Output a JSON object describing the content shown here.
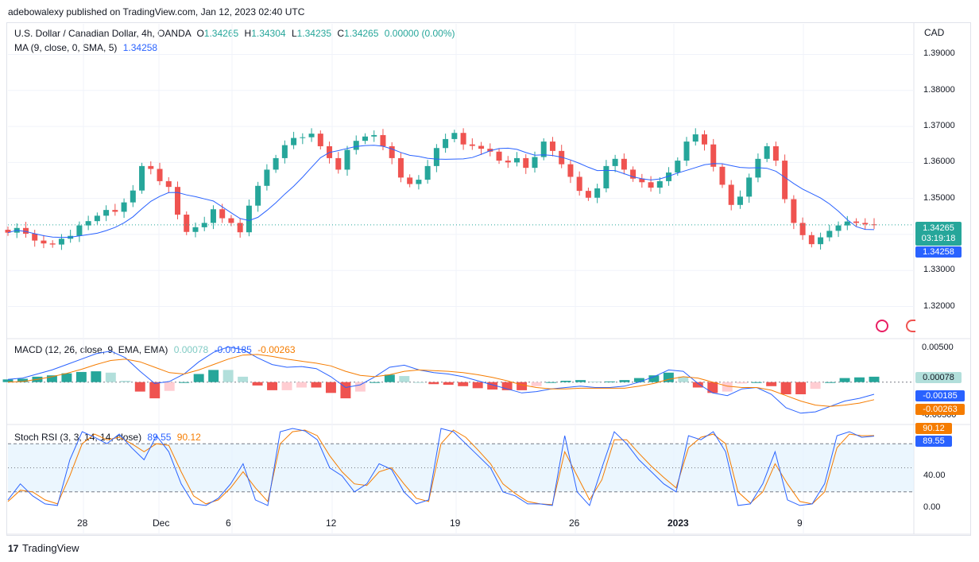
{
  "publisher": "adebowalexy published on TradingView.com, Jan 12, 2023 02:40 UTC",
  "brand": "TradingView",
  "symbol": {
    "title": "U.S. Dollar / Canadian Dollar, 4h, OANDA",
    "o_label": "O",
    "o": "1.34265",
    "h_label": "H",
    "h": "1.34304",
    "l_label": "L",
    "l": "1.34235",
    "c_label": "C",
    "c": "1.34265",
    "change": "0.00000 (0.00%)"
  },
  "ma": {
    "label": "MA (9, close, 0, SMA, 5)",
    "value": "1.34258"
  },
  "macd": {
    "label": "MACD (12, 26, close, 9, EMA, EMA)",
    "hist": "0.00078",
    "macd": "-0.00185",
    "signal": "-0.00263"
  },
  "stoch": {
    "label": "Stoch RSI (3, 3, 14, 14, close)",
    "k": "89.55",
    "d": "90.12"
  },
  "price_scale": {
    "currency": "CAD",
    "ticks": [
      "1.39000",
      "1.38000",
      "1.37000",
      "1.36000",
      "1.35000",
      "1.34000",
      "1.33000",
      "1.32000"
    ]
  },
  "price_labels": {
    "last": "1.34265",
    "countdown": "03:19:18",
    "ma": "1.34258"
  },
  "macd_scale": {
    "ticks": [
      "0.00500",
      "-0.00500"
    ]
  },
  "stoch_scale": {
    "ticks": [
      "80.00",
      "40.00",
      "0.00"
    ]
  },
  "time_axis": [
    "28",
    "Dec",
    "6",
    "12",
    "19",
    "26",
    "2023",
    "9"
  ],
  "colors": {
    "up": "#26a69a",
    "down": "#ef5350",
    "ma": "#2962ff",
    "signal": "#f57c00",
    "hist_up_light": "#b2dfdb",
    "hist_down_light": "#ffcdd2"
  },
  "chart_data": [
    {
      "type": "candlestick",
      "title": "U.S. Dollar / Canadian Dollar, 4h, OANDA",
      "ylim": [
        1.3115,
        1.3985
      ],
      "series_close_approx": [
        1.3405,
        1.3418,
        1.3402,
        1.3383,
        1.3375,
        1.3372,
        1.3388,
        1.3396,
        1.3425,
        1.3437,
        1.3452,
        1.3468,
        1.3463,
        1.3489,
        1.3522,
        1.359,
        1.3582,
        1.3548,
        1.3532,
        1.3455,
        1.3407,
        1.342,
        1.3432,
        1.347,
        1.3445,
        1.3432,
        1.3406,
        1.348,
        1.3535,
        1.358,
        1.3612,
        1.3648,
        1.3668,
        1.367,
        1.368,
        1.3645,
        1.3612,
        1.358,
        1.3635,
        1.366,
        1.3672,
        1.3676,
        1.3645,
        1.3612,
        1.3558,
        1.354,
        1.3552,
        1.359,
        1.364,
        1.3665,
        1.3682,
        1.365,
        1.3646,
        1.3638,
        1.363,
        1.3605,
        1.36,
        1.3612,
        1.3585,
        1.3615,
        1.3658,
        1.3632,
        1.3595,
        1.356,
        1.3521,
        1.3502,
        1.3528,
        1.359,
        1.361,
        1.358,
        1.3555,
        1.3545,
        1.353,
        1.3548,
        1.3572,
        1.3605,
        1.3658,
        1.3678,
        1.365,
        1.3588,
        1.3538,
        1.3482,
        1.3505,
        1.3558,
        1.361,
        1.3645,
        1.3605,
        1.3498,
        1.3432,
        1.3398,
        1.3373,
        1.3392,
        1.341,
        1.3425,
        1.3436,
        1.3432,
        1.3428,
        1.3426
      ],
      "ma_last": 1.34258,
      "last_price": 1.34265
    },
    {
      "type": "line",
      "title": "MACD (12, 26, close, 9, EMA, EMA)",
      "series": [
        {
          "name": "MACD",
          "values": [
            0.0004,
            0.0006,
            0.0012,
            0.0018,
            0.0026,
            0.0034,
            0.0042,
            0.0046,
            0.0036,
            0.0016,
            -0.0002,
            0.0001,
            0.0012,
            0.003,
            0.0044,
            0.0052,
            0.0048,
            0.0036,
            0.0026,
            0.0022,
            0.0023,
            0.002,
            0.0008,
            -0.0008,
            -0.0004,
            0.0008,
            0.0022,
            0.0025,
            0.0018,
            0.0014,
            0.0012,
            0.0008,
            0.0002,
            -0.0004,
            -0.001,
            -0.0016,
            -0.0014,
            -0.001,
            -0.0008,
            -0.0006,
            -0.0008,
            -0.0008,
            -0.0006,
            0.0,
            0.0008,
            0.0018,
            0.0016,
            -0.0002,
            -0.0016,
            -0.002,
            -0.001,
            -0.0008,
            -0.0018,
            -0.0038,
            -0.0046,
            -0.0044,
            -0.0036,
            -0.0028,
            -0.0024,
            -0.0018
          ]
        },
        {
          "name": "Signal",
          "values": [
            0.0,
            0.0001,
            0.0004,
            0.0008,
            0.0013,
            0.0019,
            0.0026,
            0.0032,
            0.0034,
            0.003,
            0.0022,
            0.0014,
            0.0012,
            0.0018,
            0.0026,
            0.0034,
            0.004,
            0.0041,
            0.0038,
            0.0034,
            0.0031,
            0.0028,
            0.0024,
            0.0016,
            0.001,
            0.0008,
            0.0011,
            0.0016,
            0.0018,
            0.0017,
            0.0016,
            0.0014,
            0.0011,
            0.0007,
            0.0002,
            -0.0004,
            -0.0008,
            -0.001,
            -0.001,
            -0.0009,
            -0.0009,
            -0.0009,
            -0.0009,
            -0.0006,
            -0.0002,
            0.0004,
            0.0008,
            0.0006,
            0.0,
            -0.0006,
            -0.0008,
            -0.0008,
            -0.0012,
            -0.002,
            -0.0028,
            -0.0034,
            -0.0036,
            -0.0034,
            -0.0031,
            -0.0026
          ]
        }
      ],
      "ylim": [
        -0.0058,
        0.0062
      ]
    },
    {
      "type": "line",
      "title": "Stoch RSI (3, 3, 14, 14, close)",
      "series": [
        {
          "name": "K",
          "values": [
            10,
            30,
            15,
            5,
            3,
            60,
            95,
            88,
            80,
            92,
            75,
            60,
            90,
            70,
            30,
            5,
            3,
            12,
            30,
            55,
            10,
            3,
            95,
            99,
            96,
            85,
            50,
            40,
            20,
            30,
            55,
            48,
            20,
            5,
            10,
            99,
            95,
            80,
            65,
            50,
            20,
            15,
            5,
            5,
            3,
            90,
            20,
            3,
            50,
            95,
            80,
            60,
            45,
            30,
            20,
            90,
            85,
            95,
            70,
            3,
            5,
            30,
            70,
            10,
            3,
            5,
            30,
            90,
            95,
            88,
            89.55
          ]
        },
        {
          "name": "D",
          "values": [
            8,
            22,
            20,
            10,
            5,
            40,
            80,
            92,
            85,
            88,
            80,
            70,
            80,
            78,
            45,
            15,
            5,
            10,
            25,
            45,
            25,
            8,
            80,
            95,
            97,
            90,
            65,
            45,
            30,
            28,
            45,
            50,
            30,
            12,
            8,
            80,
            97,
            88,
            72,
            55,
            30,
            18,
            8,
            5,
            4,
            70,
            40,
            10,
            35,
            85,
            85,
            68,
            52,
            38,
            25,
            75,
            88,
            92,
            80,
            20,
            6,
            20,
            55,
            30,
            8,
            5,
            20,
            75,
            92,
            90,
            90.12
          ]
        }
      ],
      "ylim": [
        -5,
        102
      ],
      "bands": [
        20,
        80
      ]
    }
  ]
}
